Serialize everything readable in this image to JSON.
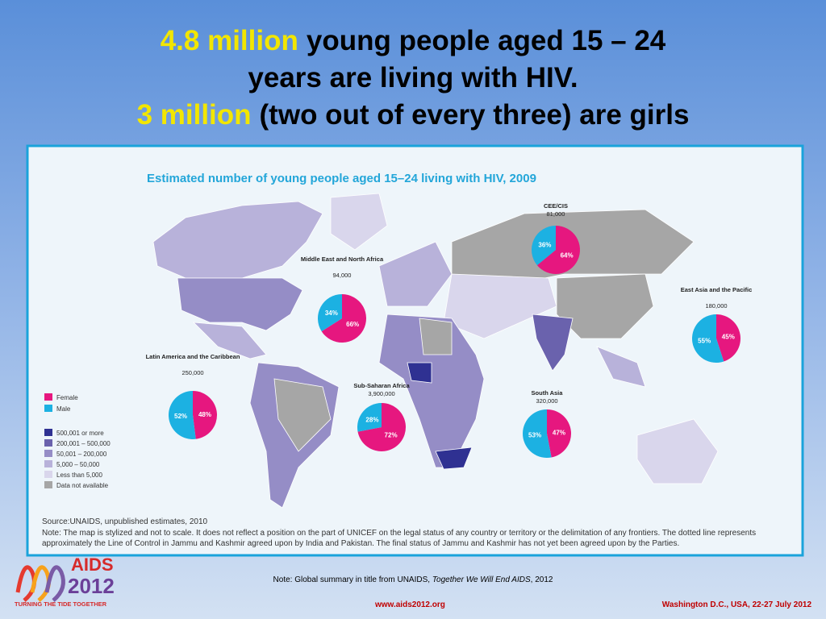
{
  "header": {
    "lines": [
      [
        {
          "text": "4.8 million",
          "highlight": true
        },
        {
          "text": "young people aged 15 – 24",
          "highlight": false
        }
      ],
      [
        {
          "text": "years are living with HIV.",
          "highlight": false
        }
      ],
      [
        {
          "text": "3 million",
          "highlight": true
        },
        {
          "text": "(two out of every three) are girls",
          "highlight": false
        }
      ]
    ],
    "highlight_color": "#f2e600"
  },
  "panel": {
    "title": "Estimated number of young people aged 15–24 living with HIV, 2009",
    "legend": {
      "sex": [
        {
          "name": "Female",
          "color": "#e6177f"
        },
        {
          "name": "Male",
          "color": "#1cb1e2"
        }
      ],
      "scale": [
        {
          "name": "500,001 or more",
          "color": "#2f3192"
        },
        {
          "name": "200,001 – 500,000",
          "color": "#6a62ad"
        },
        {
          "name": "50,001 – 200,000",
          "color": "#958dc6"
        },
        {
          "name": "5,000 – 50,000",
          "color": "#b8b2da"
        },
        {
          "name": "Less than 5,000",
          "color": "#d9d6ec"
        },
        {
          "name": "Data not available",
          "color": "#a6a6a6"
        }
      ]
    },
    "source": "Source:UNAIDS, unpublished estimates, 2010",
    "note": "Note: The map is stylized and not to scale. It does not reflect a position on the part of UNICEF on the legal status of any country or territory or the delimitation of any frontiers. The dotted line represents approximately the Line of Control in Jammu and Kashmir agreed upon by India and Pakistan. The final status of Jammu and Kashmir has not yet been agreed upon by the Parties."
  },
  "chart_data": [
    {
      "type": "pie",
      "title": "CEE/CIS",
      "subtitle": "81,000",
      "values": [
        64,
        36
      ],
      "value_labels": [
        "64%",
        "36%"
      ]
    },
    {
      "type": "pie",
      "title": "Middle East and North Africa",
      "subtitle": "94,000",
      "values": [
        66,
        34
      ],
      "value_labels": [
        "66%",
        "34%"
      ]
    },
    {
      "type": "pie",
      "title": "East Asia and the Pacific",
      "subtitle": "180,000",
      "values": [
        45,
        55
      ],
      "value_labels": [
        "45%",
        "55%"
      ]
    },
    {
      "type": "pie",
      "title": "Latin America and the Caribbean",
      "subtitle": "250,000",
      "values": [
        48,
        52
      ],
      "value_labels": [
        "48%",
        "52%"
      ]
    },
    {
      "type": "pie",
      "title": "Sub-Saharan Africa",
      "subtitle": "3,900,000",
      "values": [
        72,
        28
      ],
      "value_labels": [
        "72%",
        "28%"
      ]
    },
    {
      "type": "pie",
      "title": "South Asia",
      "subtitle": "320,000",
      "values": [
        47,
        53
      ],
      "value_labels": [
        "47%",
        "53%"
      ]
    }
  ],
  "footer": {
    "note": [
      {
        "text": "Note:  Global summary in title from UNAIDS, ",
        "italic": false
      },
      {
        "text": "Together We Will End AIDS",
        "italic": true
      },
      {
        "text": ", 2012",
        "italic": false
      }
    ],
    "logo": {
      "name": "AIDS",
      "year": "2012",
      "tagline": "TURNING THE TIDE TOGETHER"
    },
    "url": "www.aids2012.org",
    "event": "Washington D.C., USA, 22-27 July 2012"
  }
}
